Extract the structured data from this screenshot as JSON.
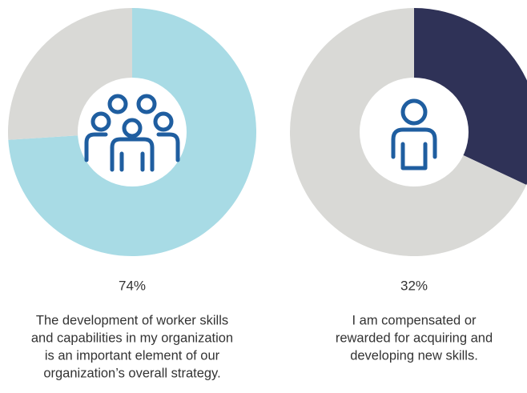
{
  "chart_data": [
    {
      "type": "pie",
      "values": [
        74,
        26
      ],
      "value_labels": [
        "74%",
        null
      ],
      "colors": [
        "#a8dbe5",
        "#d9d9d6"
      ],
      "caption": [
        "The development of worker skills",
        "and capabilities in my organization",
        "is an important element of our",
        "organization’s overall strategy."
      ]
    },
    {
      "type": "pie",
      "values": [
        32,
        68
      ],
      "value_labels": [
        "32%",
        null
      ],
      "colors": [
        "#2f3257",
        "#d9d9d6"
      ],
      "caption": [
        "I am compensated or",
        "rewarded for acquiring and",
        "developing new skills."
      ]
    }
  ]
}
